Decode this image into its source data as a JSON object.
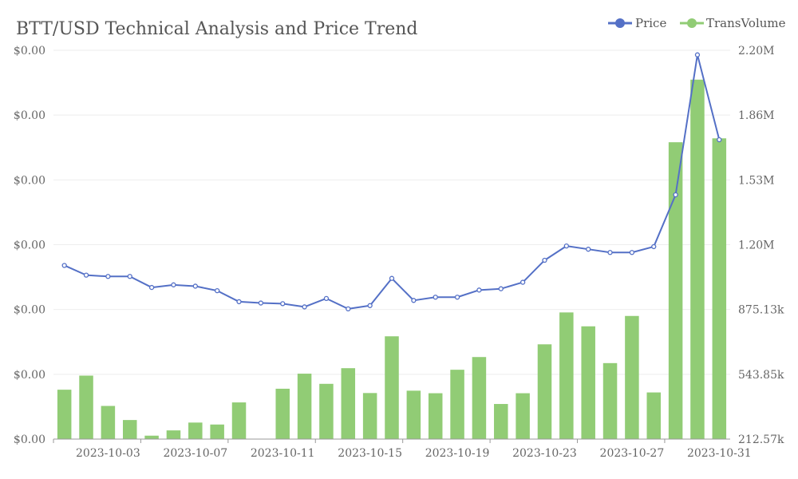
{
  "chart_data": {
    "type": "bar+line",
    "title": "BTT/USD Technical Analysis and Price Trend",
    "legend": [
      "Price",
      "TransVolume"
    ],
    "legend_position": "top-right",
    "colors": {
      "price": "#5470c6",
      "volume": "#91cc75",
      "grid": "#eeeeee",
      "axis": "#999999"
    },
    "x_tick_labels": [
      "2023-10-03",
      "2023-10-07",
      "2023-10-11",
      "2023-10-15",
      "2023-10-19",
      "2023-10-23",
      "2023-10-27",
      "2023-10-31"
    ],
    "left_axis_tick_labels": [
      "$0.00",
      "$0.00",
      "$0.00",
      "$0.00",
      "$0.00",
      "$0.00",
      "$0.00"
    ],
    "right_axis_tick_labels": [
      "212.57k",
      "543.85k",
      "875.13k",
      "1.20M",
      "1.53M",
      "1.86M",
      "2.20M"
    ],
    "right_axis_range": [
      212570,
      2200000
    ],
    "left_axis_range": [
      0,
      6
    ],
    "grid": true,
    "x": [
      "2023-10-01",
      "2023-10-02",
      "2023-10-03",
      "2023-10-04",
      "2023-10-05",
      "2023-10-06",
      "2023-10-07",
      "2023-10-08",
      "2023-10-09",
      "2023-10-10",
      "2023-10-11",
      "2023-10-12",
      "2023-10-13",
      "2023-10-14",
      "2023-10-15",
      "2023-10-16",
      "2023-10-17",
      "2023-10-18",
      "2023-10-19",
      "2023-10-20",
      "2023-10-21",
      "2023-10-22",
      "2023-10-23",
      "2023-10-24",
      "2023-10-25",
      "2023-10-26",
      "2023-10-27",
      "2023-10-28",
      "2023-10-29",
      "2023-10-30",
      "2023-10-31"
    ],
    "series": [
      {
        "name": "Price",
        "type": "line",
        "axis": "left",
        "values": [
          2.68,
          2.53,
          2.51,
          2.51,
          2.34,
          2.38,
          2.36,
          2.29,
          2.12,
          2.1,
          2.09,
          2.04,
          2.17,
          2.01,
          2.06,
          2.48,
          2.14,
          2.19,
          2.19,
          2.3,
          2.32,
          2.42,
          2.76,
          2.98,
          2.93,
          2.88,
          2.88,
          2.97,
          3.77,
          5.93,
          4.62
        ]
      },
      {
        "name": "TransVolume",
        "type": "bar",
        "axis": "right",
        "values": [
          465000,
          537000,
          382000,
          310000,
          230000,
          257000,
          297000,
          287000,
          400000,
          212570,
          470000,
          547000,
          495000,
          575000,
          448000,
          738000,
          460000,
          447000,
          567000,
          632000,
          392000,
          447000,
          697000,
          860000,
          789000,
          601000,
          842000,
          451000,
          1730000,
          2050000,
          1750000
        ]
      }
    ]
  }
}
